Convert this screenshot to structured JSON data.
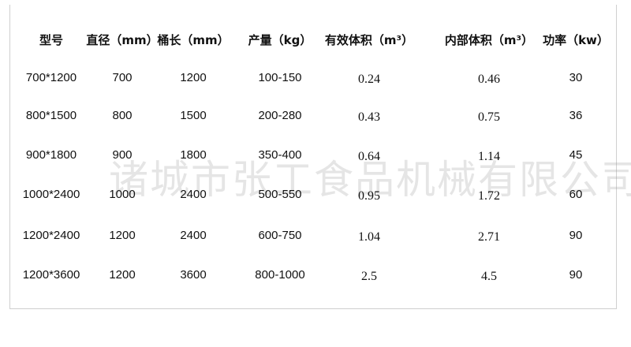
{
  "table": {
    "headers": [
      "型号",
      "直径（mm）",
      "桶长（mm）",
      "产量（kg）",
      "有效体积（m³）",
      "内部体积（m³）",
      "功率（kw）"
    ],
    "rows": [
      [
        "700*1200",
        "700",
        "1200",
        "100-150",
        "0.24",
        "0.46",
        "30"
      ],
      [
        "800*1500",
        "800",
        "1500",
        "200-280",
        "0.43",
        "0.75",
        "36"
      ],
      [
        "900*1800",
        "900",
        "1800",
        "350-400",
        "0.64",
        "1.14",
        "45"
      ],
      [
        "1000*2400",
        "1000",
        "2400",
        "500-550",
        "0.95",
        "1.72",
        "60"
      ],
      [
        "1200*2400",
        "1200",
        "2400",
        "600-750",
        "1.04",
        "2.71",
        "90"
      ],
      [
        "1200*3600",
        "1200",
        "3600",
        "800-1000",
        "2.5",
        "4.5",
        "90"
      ]
    ]
  },
  "watermark": "诸城市张工食品机械有限公司"
}
